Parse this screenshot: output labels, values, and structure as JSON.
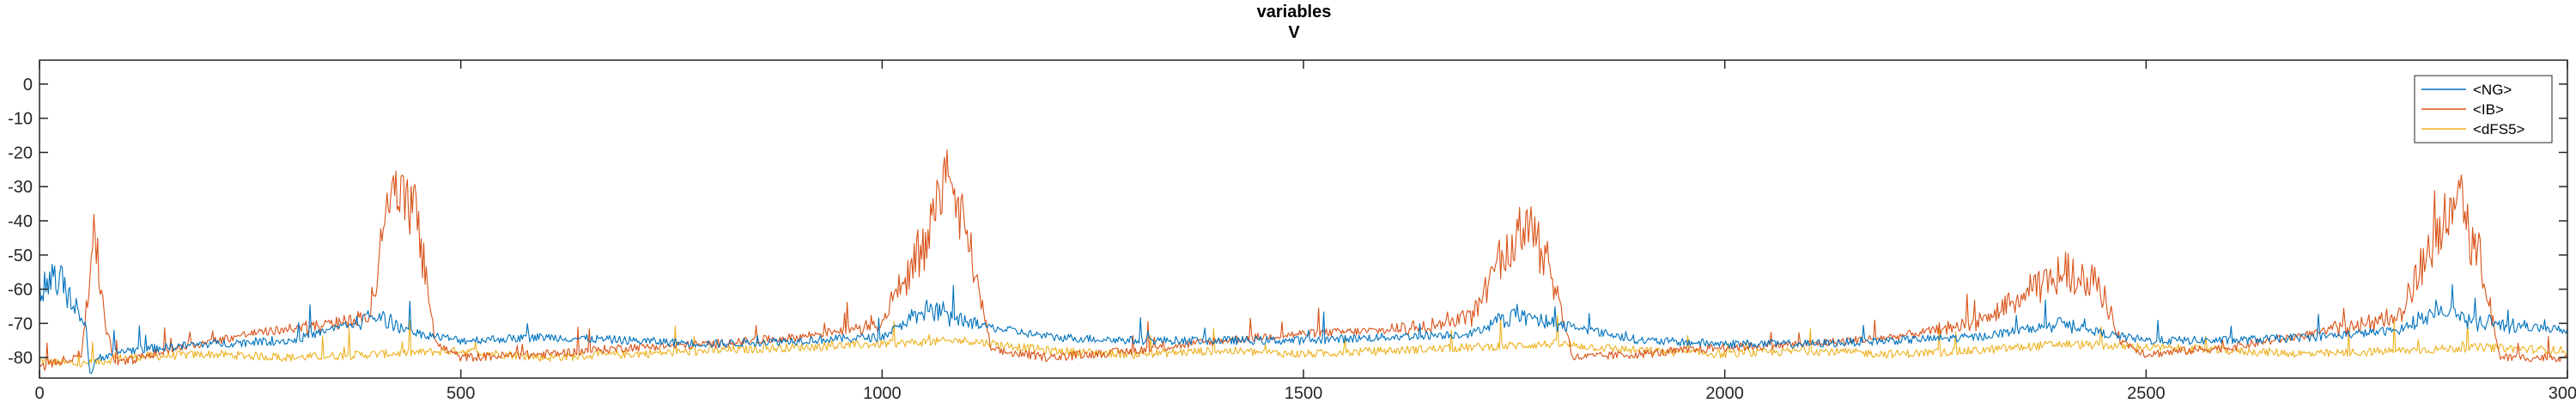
{
  "chart_data": {
    "type": "line",
    "title": "variables",
    "subtitle": "V",
    "xlabel": "",
    "ylabel": "",
    "xlim": [
      0,
      3000
    ],
    "ylim": [
      -86,
      7
    ],
    "xticks": [
      0,
      500,
      1000,
      1500,
      2000,
      2500,
      3000
    ],
    "yticks": [
      0,
      -10,
      -20,
      -30,
      -40,
      -50,
      -60,
      -70,
      -80
    ],
    "grid": false,
    "legend_position": "top-right",
    "series": [
      {
        "name": "<NG>",
        "color": "#0072BD",
        "baseline": -75,
        "points": [
          [
            0,
            -62
          ],
          [
            20,
            -55
          ],
          [
            40,
            -65
          ],
          [
            55,
            -70
          ],
          [
            60,
            -85
          ],
          [
            70,
            -80
          ],
          [
            100,
            -78
          ],
          [
            200,
            -76
          ],
          [
            300,
            -75
          ],
          [
            400,
            -68
          ],
          [
            450,
            -73
          ],
          [
            500,
            -75
          ],
          [
            600,
            -74
          ],
          [
            700,
            -75
          ],
          [
            800,
            -76
          ],
          [
            900,
            -75
          ],
          [
            1000,
            -74
          ],
          [
            1050,
            -66
          ],
          [
            1100,
            -70
          ],
          [
            1200,
            -74
          ],
          [
            1300,
            -75
          ],
          [
            1400,
            -75
          ],
          [
            1500,
            -75
          ],
          [
            1600,
            -74
          ],
          [
            1700,
            -73
          ],
          [
            1750,
            -67
          ],
          [
            1800,
            -70
          ],
          [
            1900,
            -75
          ],
          [
            2000,
            -76
          ],
          [
            2100,
            -76
          ],
          [
            2200,
            -75
          ],
          [
            2300,
            -74
          ],
          [
            2400,
            -70
          ],
          [
            2450,
            -73
          ],
          [
            2500,
            -75
          ],
          [
            2600,
            -75
          ],
          [
            2700,
            -74
          ],
          [
            2800,
            -72
          ],
          [
            2850,
            -66
          ],
          [
            2900,
            -70
          ],
          [
            3000,
            -72
          ]
        ]
      },
      {
        "name": "<IB>",
        "color": "#D95319",
        "baseline": -76,
        "points": [
          [
            0,
            -83
          ],
          [
            50,
            -79
          ],
          [
            65,
            -42
          ],
          [
            78,
            -70
          ],
          [
            90,
            -82
          ],
          [
            150,
            -78
          ],
          [
            250,
            -73
          ],
          [
            350,
            -70
          ],
          [
            390,
            -68
          ],
          [
            420,
            -30
          ],
          [
            450,
            -40
          ],
          [
            470,
            -76
          ],
          [
            500,
            -80
          ],
          [
            600,
            -79
          ],
          [
            700,
            -77
          ],
          [
            800,
            -76
          ],
          [
            900,
            -74
          ],
          [
            1000,
            -70
          ],
          [
            1050,
            -45
          ],
          [
            1080,
            -25
          ],
          [
            1110,
            -55
          ],
          [
            1130,
            -78
          ],
          [
            1200,
            -80
          ],
          [
            1300,
            -78
          ],
          [
            1400,
            -75
          ],
          [
            1500,
            -73
          ],
          [
            1600,
            -72
          ],
          [
            1700,
            -68
          ],
          [
            1740,
            -50
          ],
          [
            1770,
            -38
          ],
          [
            1800,
            -60
          ],
          [
            1820,
            -80
          ],
          [
            1900,
            -79
          ],
          [
            2000,
            -77
          ],
          [
            2100,
            -76
          ],
          [
            2200,
            -74
          ],
          [
            2300,
            -70
          ],
          [
            2350,
            -63
          ],
          [
            2400,
            -55
          ],
          [
            2440,
            -57
          ],
          [
            2470,
            -75
          ],
          [
            2500,
            -79
          ],
          [
            2600,
            -77
          ],
          [
            2700,
            -73
          ],
          [
            2800,
            -68
          ],
          [
            2840,
            -45
          ],
          [
            2870,
            -32
          ],
          [
            2900,
            -55
          ],
          [
            2920,
            -80
          ],
          [
            3000,
            -80
          ]
        ]
      },
      {
        "name": "<dFS5>",
        "color": "#EDB120",
        "baseline": -79,
        "points": [
          [
            0,
            -81
          ],
          [
            50,
            -82
          ],
          [
            100,
            -80
          ],
          [
            200,
            -79
          ],
          [
            300,
            -80
          ],
          [
            400,
            -79
          ],
          [
            500,
            -78
          ],
          [
            600,
            -80
          ],
          [
            700,
            -79
          ],
          [
            800,
            -78
          ],
          [
            900,
            -77
          ],
          [
            1000,
            -76
          ],
          [
            1100,
            -75
          ],
          [
            1200,
            -78
          ],
          [
            1300,
            -79
          ],
          [
            1400,
            -78
          ],
          [
            1500,
            -79
          ],
          [
            1600,
            -78
          ],
          [
            1700,
            -77
          ],
          [
            1800,
            -76
          ],
          [
            1900,
            -78
          ],
          [
            2000,
            -79
          ],
          [
            2100,
            -78
          ],
          [
            2200,
            -79
          ],
          [
            2300,
            -78
          ],
          [
            2400,
            -76
          ],
          [
            2500,
            -77
          ],
          [
            2600,
            -78
          ],
          [
            2700,
            -79
          ],
          [
            2800,
            -78
          ],
          [
            2900,
            -77
          ],
          [
            3000,
            -78
          ]
        ]
      }
    ]
  }
}
